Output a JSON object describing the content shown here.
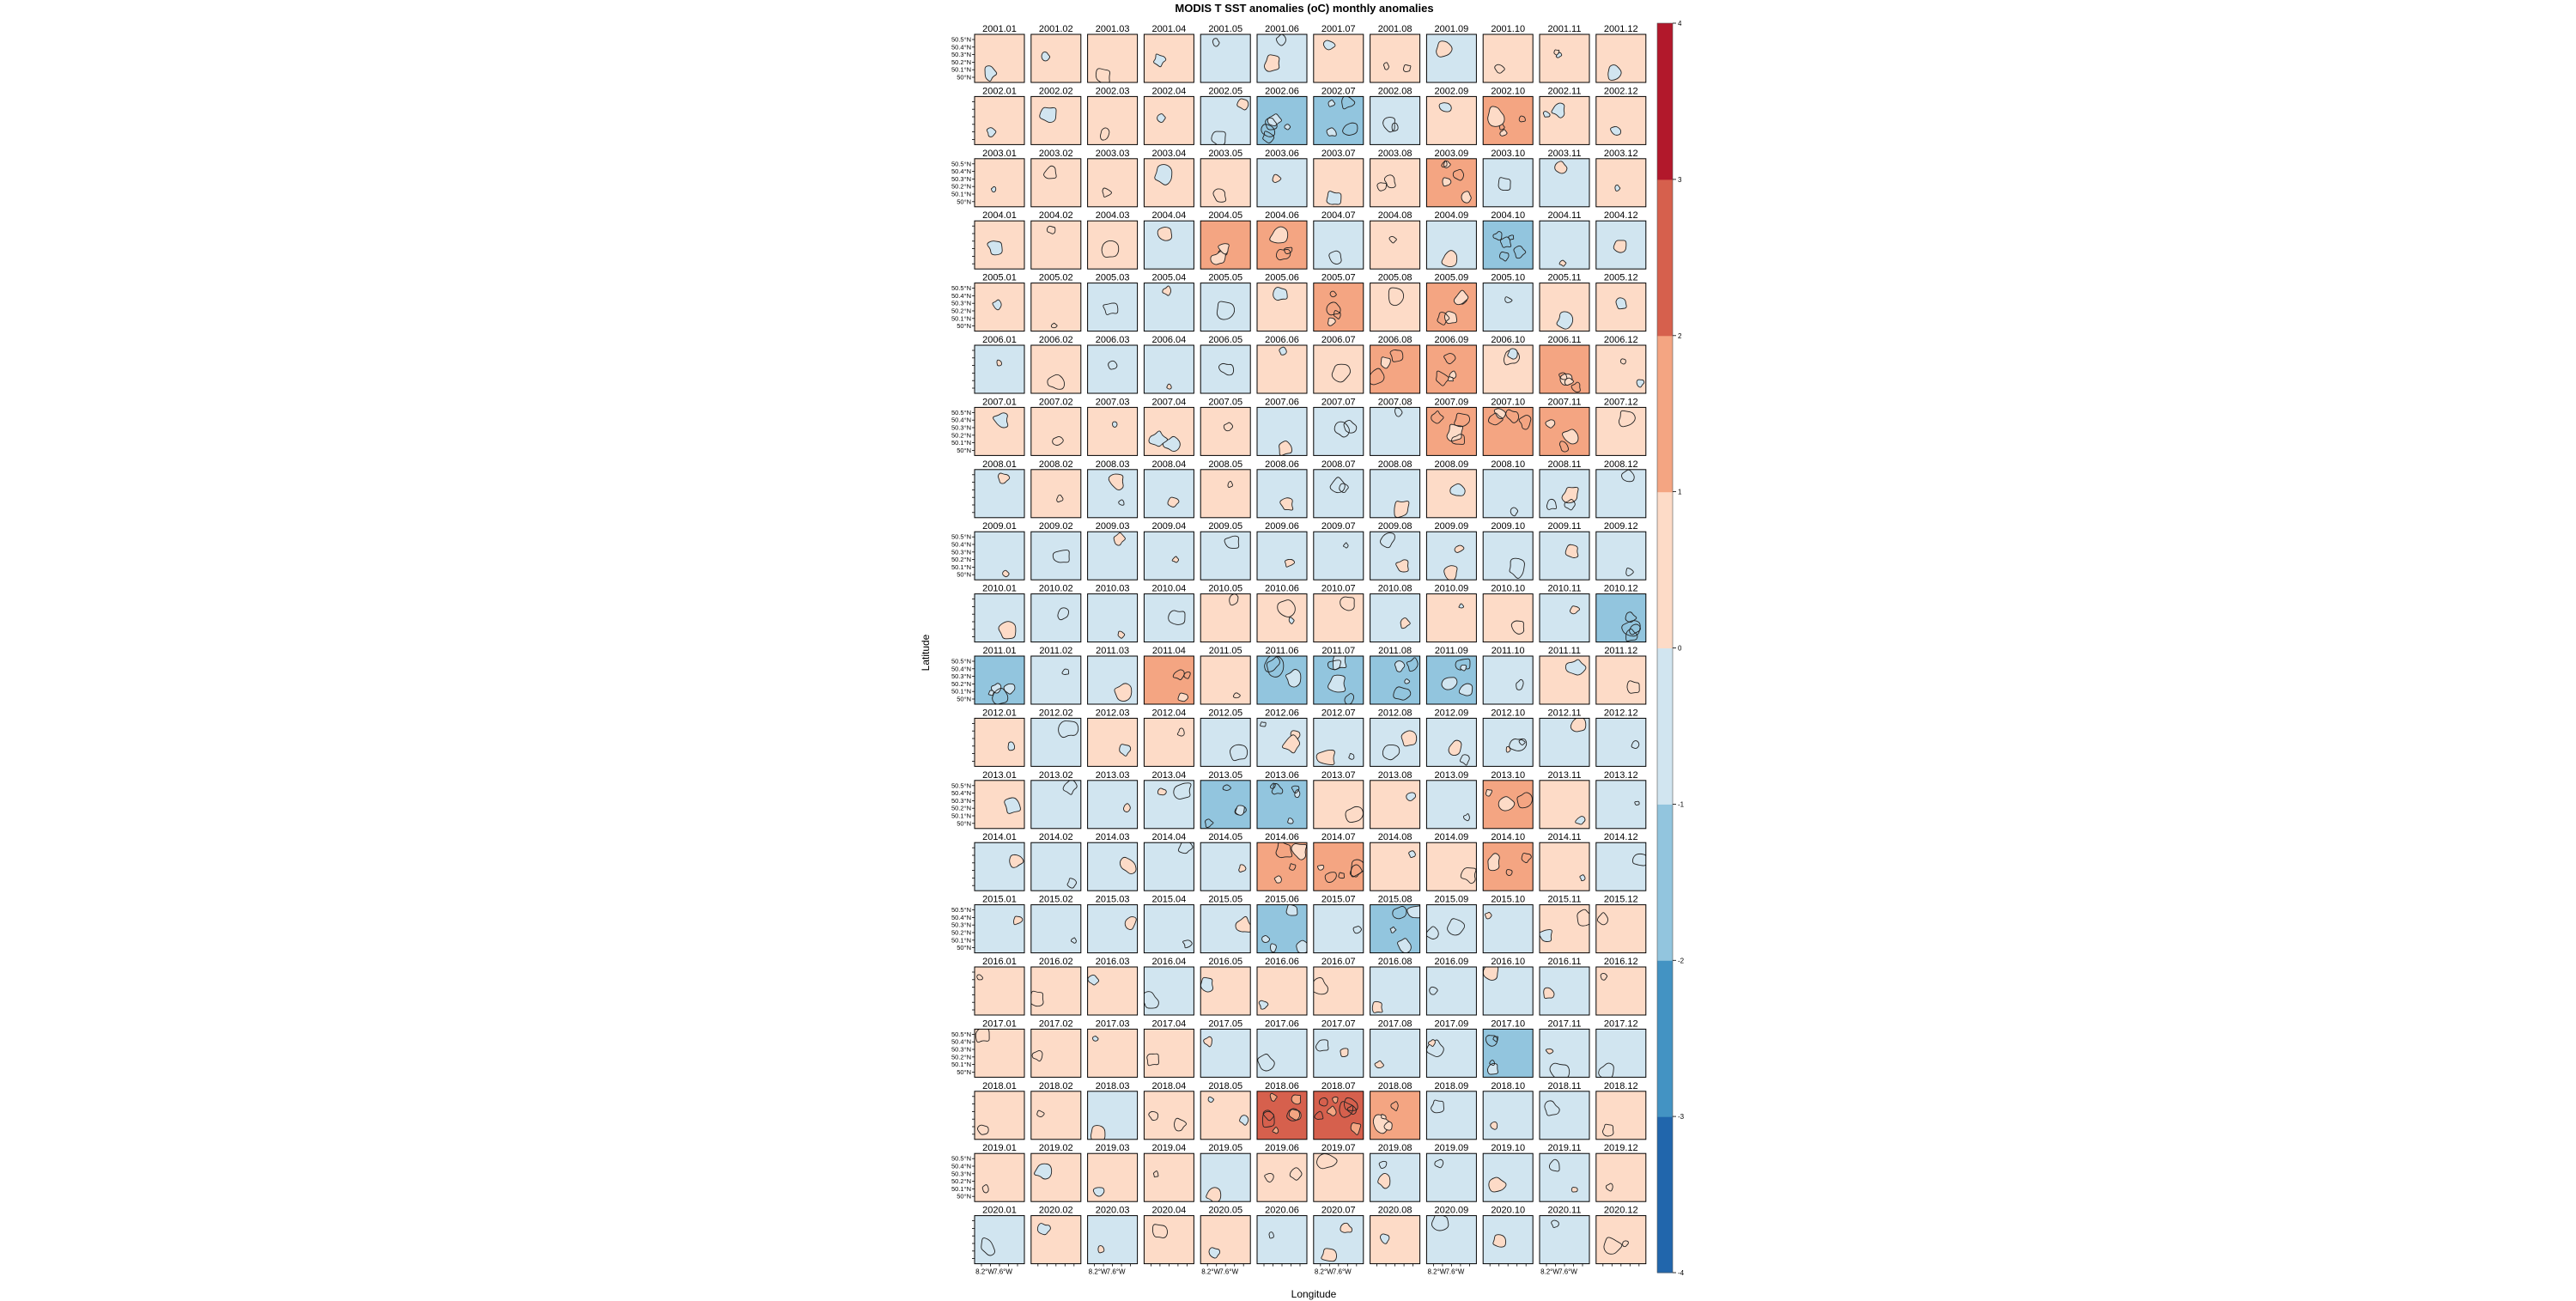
{
  "chart_data": {
    "type": "heatmap",
    "title": "MODIS T SST anomalies (oC) monthly anomalies",
    "xlabel": "Longitude",
    "ylabel": "Latitude",
    "x_tick_labels": [
      "8.2°W",
      "7.6°W"
    ],
    "y_tick_labels": [
      "50.5°N",
      "50.4°N",
      "50.3°N",
      "50.2°N",
      "50.1°N",
      "50°N"
    ],
    "years": [
      2001,
      2002,
      2003,
      2004,
      2005,
      2006,
      2007,
      2008,
      2009,
      2010,
      2011,
      2012,
      2013,
      2014,
      2015,
      2016,
      2017,
      2018,
      2019,
      2020
    ],
    "months": [
      "01",
      "02",
      "03",
      "04",
      "05",
      "06",
      "07",
      "08",
      "09",
      "10",
      "11",
      "12"
    ],
    "colorbar": {
      "min": -4,
      "max": 4,
      "breaks": [
        -4,
        -3,
        -2,
        -1,
        0,
        1,
        2,
        3,
        4
      ],
      "labels": [
        "-4",
        "-3",
        "-2",
        "-1",
        "0",
        "1",
        "2",
        "3",
        "4"
      ],
      "colors": [
        "#2166ac",
        "#4393c3",
        "#92c5de",
        "#d1e5f0",
        "#fddbc7",
        "#f4a582",
        "#d6604d",
        "#b2182b"
      ]
    },
    "monthly_mean_anomaly": [
      [
        0.3,
        0.4,
        0.3,
        0.4,
        -0.3,
        -0.6,
        0.4,
        0.5,
        -0.4,
        0.3,
        0.8,
        0.4
      ],
      [
        0.3,
        0.4,
        0.3,
        0.3,
        -0.6,
        -1.5,
        -1.2,
        -0.6,
        0.3,
        1.3,
        0.6,
        0.3
      ],
      [
        0.4,
        0.3,
        0.4,
        0.4,
        0.3,
        -0.4,
        0.4,
        0.8,
        1.5,
        -0.4,
        -0.3,
        0.3
      ],
      [
        0.4,
        0.4,
        0.3,
        -0.3,
        1.0,
        1.1,
        -0.4,
        0.3,
        -0.4,
        -1.5,
        -0.4,
        -0.3
      ],
      [
        0.4,
        0.3,
        -0.3,
        -0.4,
        -0.3,
        0.4,
        1.3,
        0.4,
        1.2,
        -0.4,
        0.3,
        0.3
      ],
      [
        -0.3,
        0.4,
        -0.4,
        -0.4,
        -0.4,
        0.3,
        0.4,
        1.1,
        1.4,
        0.8,
        1.3,
        0.6
      ],
      [
        0.3,
        0.3,
        0.3,
        0.7,
        0.4,
        -0.4,
        -0.5,
        -0.4,
        1.2,
        1.2,
        1.3,
        0.3
      ],
      [
        -0.3,
        0.3,
        -0.5,
        -0.3,
        0.4,
        -0.3,
        -0.6,
        -0.4,
        0.3,
        -0.4,
        -1.0,
        -0.3
      ],
      [
        -0.3,
        -0.3,
        -0.3,
        -0.3,
        -0.3,
        -0.3,
        -0.3,
        -0.8,
        -0.6,
        -0.3,
        -0.3,
        -0.3
      ],
      [
        -0.3,
        -0.3,
        -0.3,
        -0.3,
        0.4,
        0.5,
        0.3,
        -0.4,
        0.3,
        0.4,
        -0.4,
        -1.3
      ],
      [
        -1.2,
        -0.4,
        -0.3,
        1.1,
        0.3,
        -1.1,
        -1.8,
        -1.3,
        -1.3,
        -0.4,
        0.4,
        0.4
      ],
      [
        0.3,
        -0.4,
        0.3,
        0.4,
        -0.3,
        -1.0,
        -0.6,
        -0.8,
        -0.6,
        -1.0,
        -0.4,
        -0.3
      ],
      [
        0.4,
        -0.3,
        -0.3,
        -0.6,
        -1.4,
        -1.5,
        0.4,
        0.4,
        -0.4,
        1.1,
        0.4,
        -0.3
      ],
      [
        -0.3,
        -0.3,
        -0.3,
        -0.4,
        -0.3,
        1.4,
        1.5,
        0.4,
        0.4,
        1.0,
        0.4,
        -0.4
      ],
      [
        -0.4,
        -0.3,
        -0.3,
        -0.3,
        -0.3,
        -1.4,
        -0.4,
        -1.2,
        -0.6,
        -0.3,
        0.8,
        0.3
      ],
      [
        0.3,
        0.3,
        0.3,
        -0.3,
        0.3,
        0.3,
        0.4,
        -0.4,
        -0.4,
        -0.4,
        -0.3,
        0.4
      ],
      [
        0.3,
        0.3,
        0.3,
        0.3,
        -0.3,
        -0.3,
        -0.6,
        -0.3,
        -0.5,
        -1.2,
        -0.6,
        -0.4
      ],
      [
        0.4,
        0.3,
        -0.3,
        0.6,
        0.8,
        2.3,
        2.6,
        1.4,
        -0.4,
        -0.3,
        -0.3,
        0.4
      ],
      [
        0.3,
        0.3,
        0.3,
        0.3,
        -0.4,
        0.5,
        0.4,
        -0.5,
        -0.3,
        -0.4,
        -0.6,
        0.4
      ],
      [
        -0.4,
        0.4,
        -0.3,
        0.4,
        0.4,
        -0.4,
        -0.6,
        0.3,
        -0.4,
        -0.3,
        -0.4,
        0.5
      ]
    ]
  }
}
